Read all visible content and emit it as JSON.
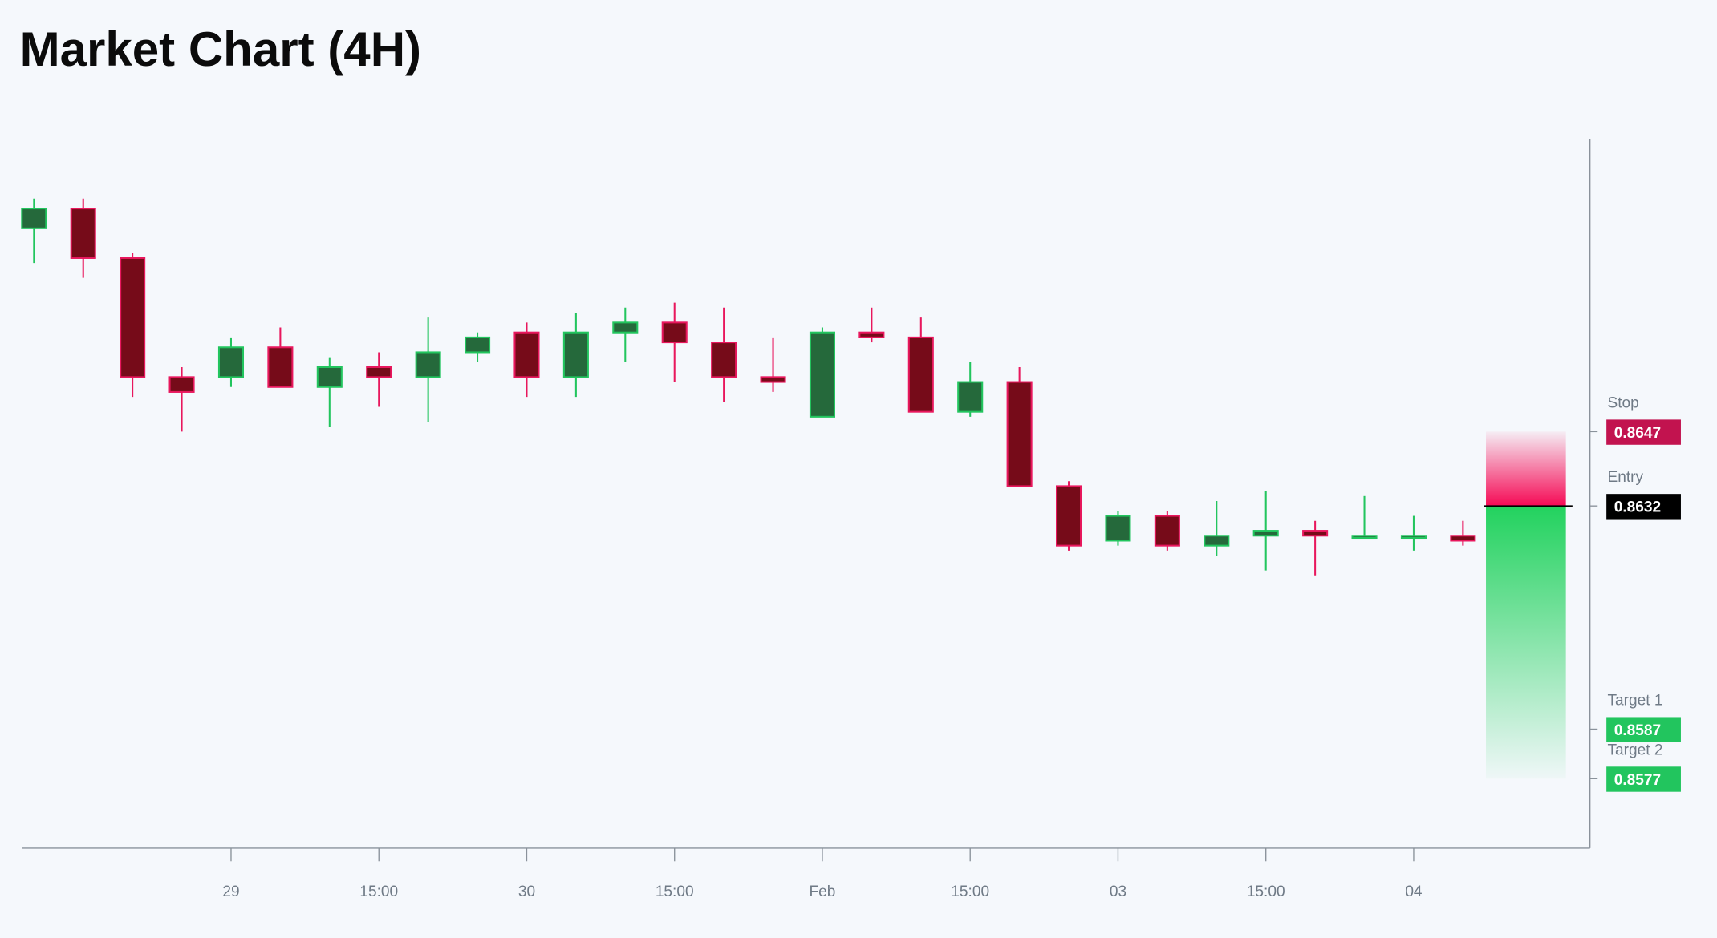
{
  "chart_data": {
    "type": "candlestick",
    "title": "Market Chart (4H)",
    "x": [
      null,
      null,
      null,
      null,
      "29",
      null,
      null,
      "15:00",
      null,
      null,
      "30",
      null,
      null,
      "15:00",
      null,
      null,
      "Feb",
      null,
      null,
      "15:00",
      null,
      null,
      "03",
      null,
      null,
      "15:00",
      null,
      null,
      "04",
      null
    ],
    "open": [
      0.8688,
      0.8692,
      0.8682,
      0.8658,
      0.8658,
      0.8664,
      0.8656,
      0.866,
      0.8658,
      0.8663,
      0.8667,
      0.8658,
      0.8667,
      0.8669,
      0.8665,
      0.8658,
      0.865,
      0.8667,
      0.8666,
      0.8651,
      0.8657,
      0.8636,
      0.8625,
      0.863,
      0.8624,
      0.8626,
      0.8627,
      0.8626,
      0.8626,
      0.8626
    ],
    "high": [
      0.8694,
      0.8694,
      0.8683,
      0.866,
      0.8666,
      0.8668,
      0.8662,
      0.8663,
      0.867,
      0.8667,
      0.8669,
      0.8671,
      0.8672,
      0.8673,
      0.8672,
      0.8666,
      0.8668,
      0.8672,
      0.867,
      0.8661,
      0.866,
      0.8637,
      0.8631,
      0.8631,
      0.8633,
      0.8635,
      0.8629,
      0.8634,
      0.863,
      0.8629
    ],
    "low": [
      0.8681,
      0.8678,
      0.8654,
      0.8647,
      0.8656,
      0.8656,
      0.8648,
      0.8652,
      0.8649,
      0.8661,
      0.8654,
      0.8654,
      0.8661,
      0.8657,
      0.8653,
      0.8655,
      0.865,
      0.8665,
      0.8651,
      0.865,
      0.8636,
      0.8623,
      0.8624,
      0.8623,
      0.8622,
      0.8619,
      0.8618,
      0.8626,
      0.8623,
      0.8624
    ],
    "close": [
      0.8692,
      0.8682,
      0.8658,
      0.8655,
      0.8664,
      0.8656,
      0.866,
      0.8658,
      0.8663,
      0.8666,
      0.8658,
      0.8667,
      0.8669,
      0.8665,
      0.8658,
      0.8657,
      0.8667,
      0.8666,
      0.8651,
      0.8657,
      0.8636,
      0.8624,
      0.863,
      0.8624,
      0.8626,
      0.8627,
      0.8626,
      0.8626,
      0.8626,
      0.8625
    ],
    "up_color": "#22c55e",
    "up_fill": "#25693b",
    "down_color": "#e8175d",
    "down_fill": "#760b19",
    "ylim": [
      0.8563,
      0.8706
    ],
    "levels": [
      {
        "name": "Stop",
        "value": 0.8647,
        "color": "#c2134f"
      },
      {
        "name": "Entry",
        "value": 0.8632,
        "color": "#000000"
      },
      {
        "name": "Target 1",
        "value": 0.8587,
        "color": "#22c55e"
      },
      {
        "name": "Target 2",
        "value": 0.8577,
        "color": "#22c55e"
      }
    ],
    "grid": false
  }
}
